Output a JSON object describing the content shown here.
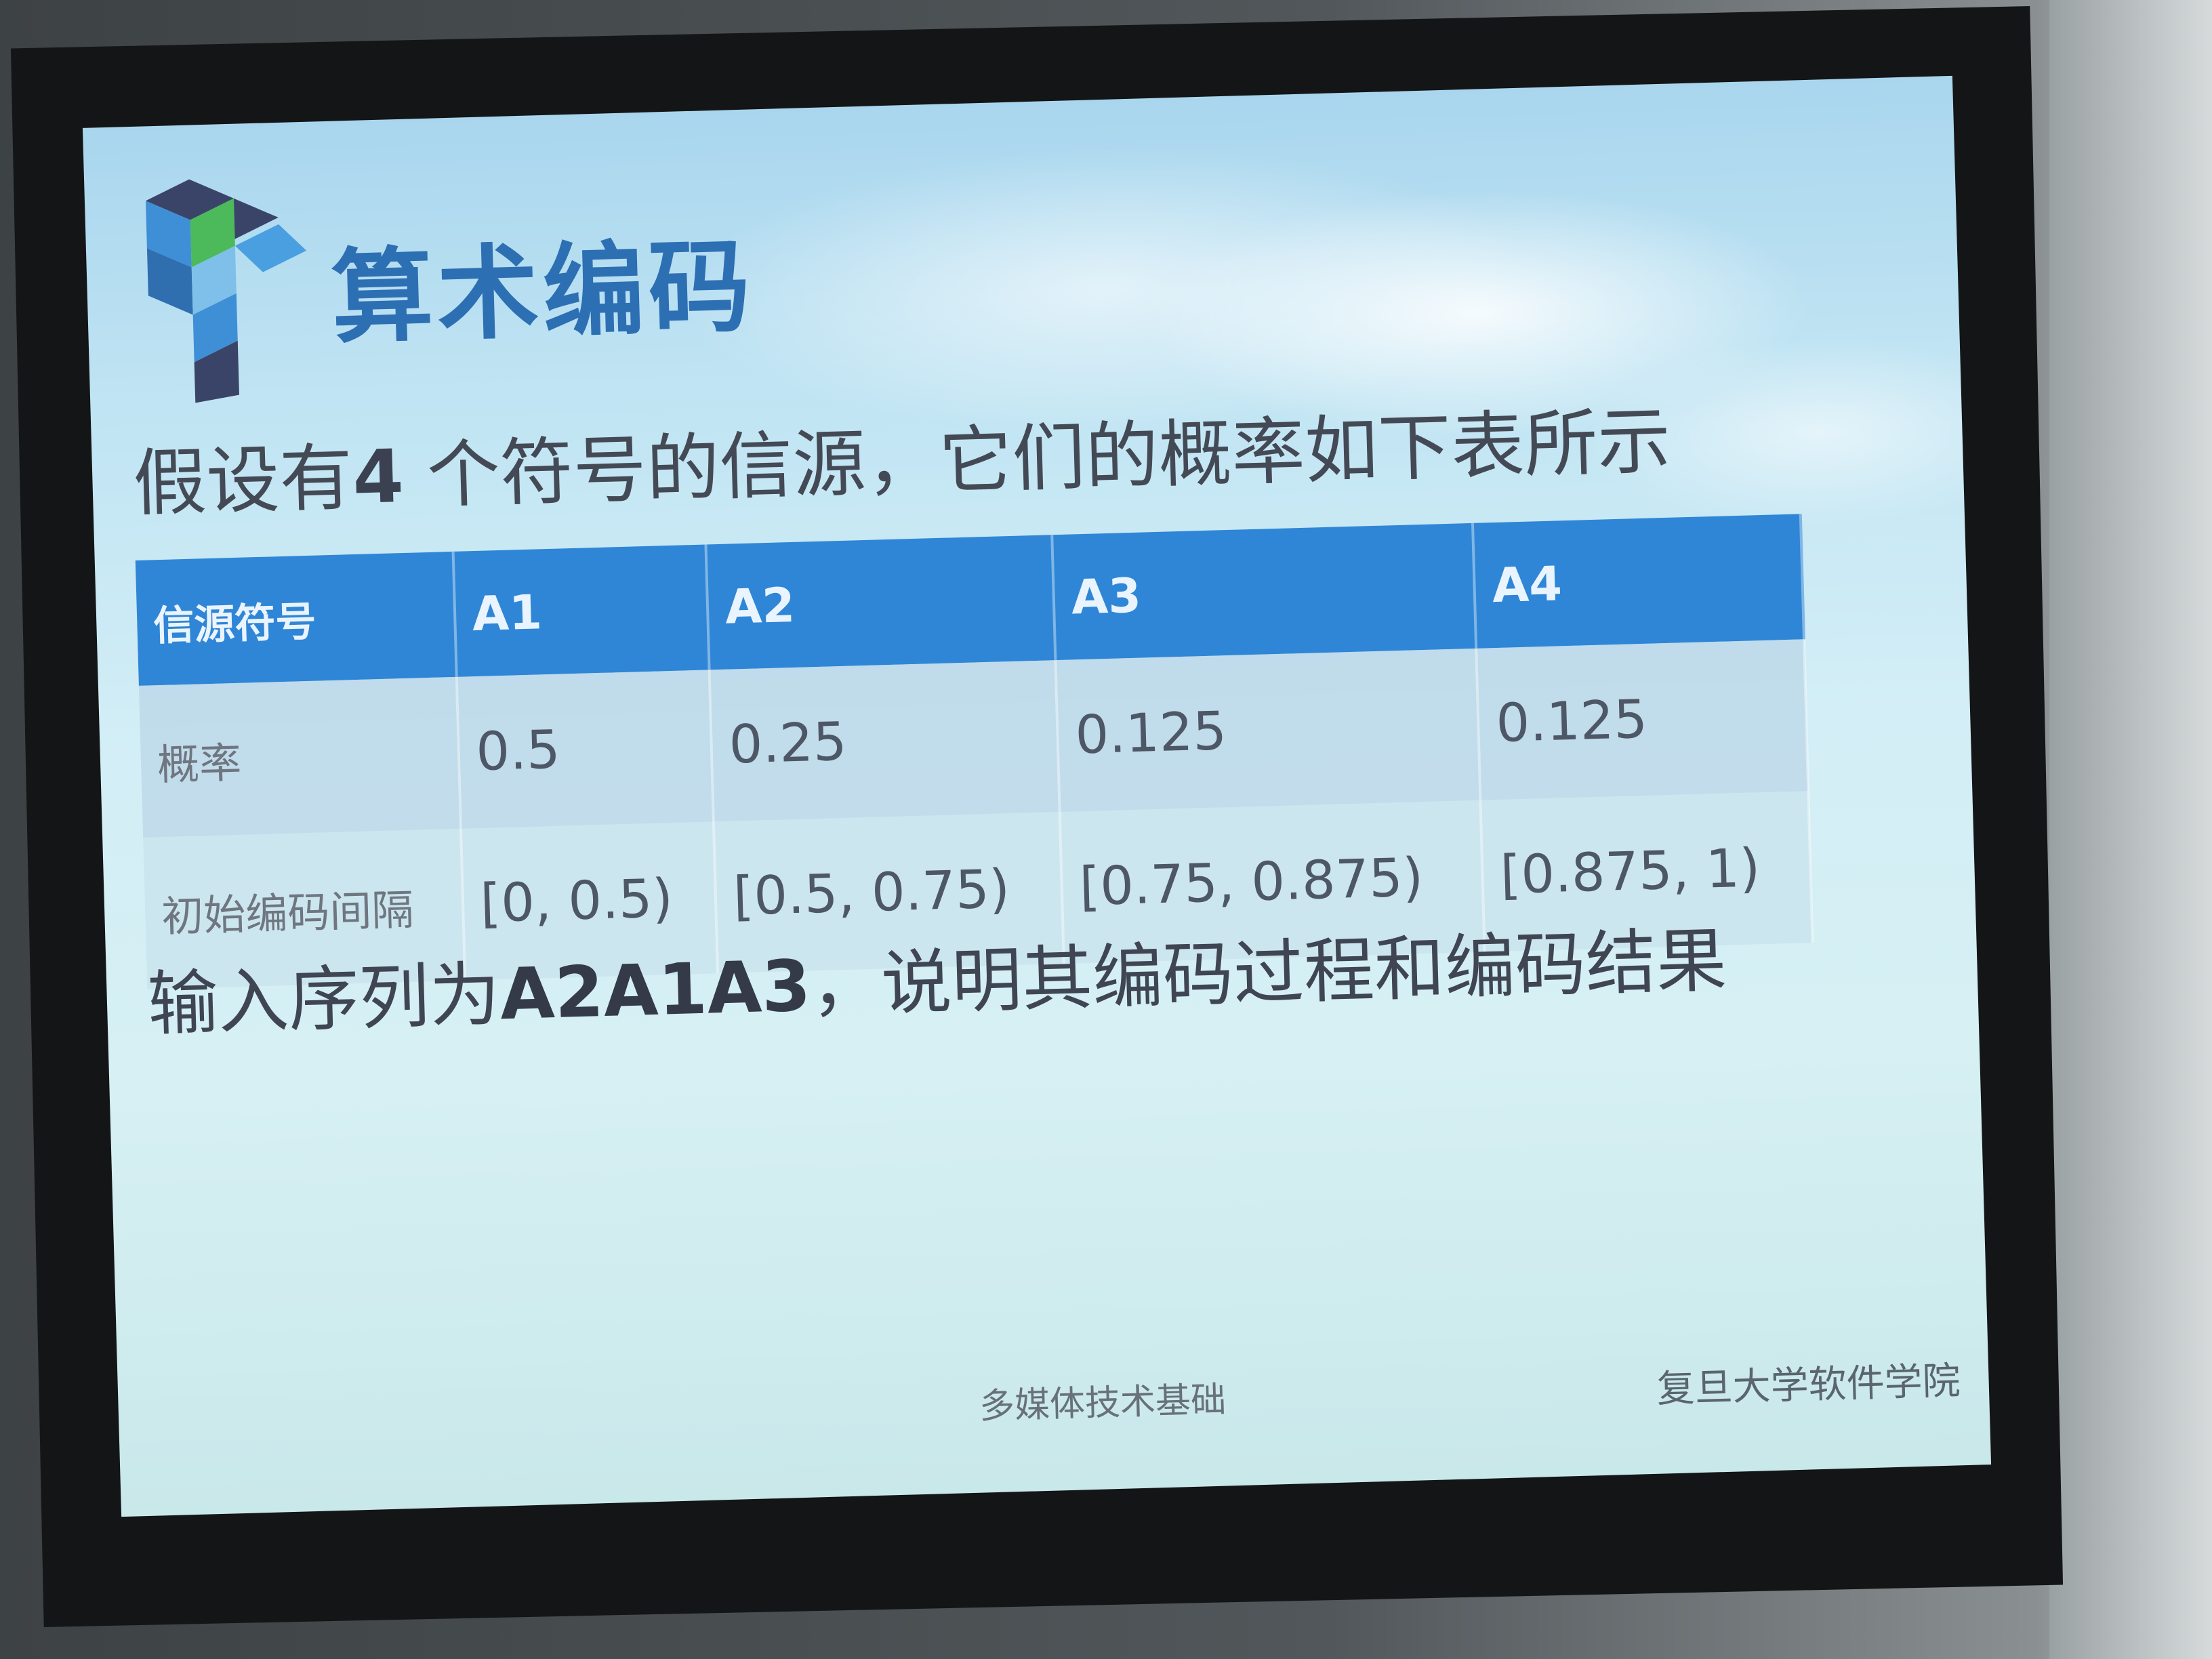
{
  "slide": {
    "title": "算术编码",
    "lead": {
      "before": "假设有",
      "number": "4",
      "after": " 个符号的信源，它们的概率如下表所示"
    },
    "table": {
      "headers": [
        "信源符号",
        "A1",
        "A2",
        "A3",
        "A4"
      ],
      "rows": [
        [
          "概率",
          "0.5",
          "0.25",
          "0.125",
          "0.125"
        ],
        [
          "初始编码间隔",
          "[0, 0.5)",
          "[0.5, 0.75)",
          "[0.75, 0.875)",
          "[0.875, 1)"
        ]
      ]
    },
    "question": {
      "before": "输入序列为",
      "sequence": "A2A1A3",
      "after": "，说明其编码过程和编码结果"
    },
    "footer_left": "多媒体技术基础",
    "footer_right": "复旦大学软件学院"
  },
  "colors": {
    "title": "#2d6fb3",
    "table_header": "#2f86d6",
    "logo_dark": "#3a4468",
    "logo_blue": "#3f8fd6",
    "logo_green": "#4cba5a"
  }
}
